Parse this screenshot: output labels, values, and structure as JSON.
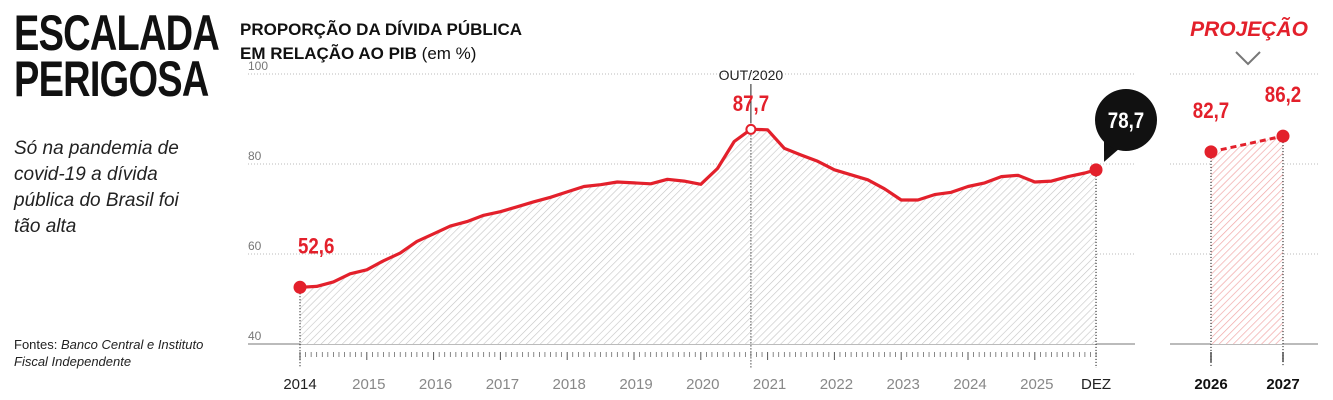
{
  "headline": {
    "line1": "ESCALADA",
    "line2": "PERIGOSA"
  },
  "deck": "Só na pandemia de covid-19 a dívida pública do Brasil foi tão alta",
  "sources": {
    "lead": "Fontes:",
    "body": "Banco Central e Instituto Fiscal Independente"
  },
  "chart_title": {
    "line1": "PROPORÇÃO DA DÍVIDA PÚBLICA",
    "line2_bold": "EM RELAÇÃO AO PIB",
    "line2_unit": "(em %)"
  },
  "colors": {
    "accent": "#e3202b",
    "text": "#111111",
    "grid": "#bbbbbb",
    "callout_bg": "#111111"
  },
  "chart_data": [
    {
      "type": "area",
      "title": "PROPORÇÃO DA DÍVIDA PÚBLICA EM RELAÇÃO AO PIB (em %)",
      "ylim": [
        40,
        100
      ],
      "yticks": [
        "40",
        "60",
        "80",
        "100"
      ],
      "x_tick_labels": [
        "2014",
        "2015",
        "2016",
        "2017",
        "2018",
        "2019",
        "2020",
        "2021",
        "2022",
        "2023",
        "2024",
        "2025",
        "DEZ"
      ],
      "grid": true,
      "series": [
        {
          "values": [
            [
              "2014-01",
              52.6
            ],
            [
              "2014-04",
              52.8
            ],
            [
              "2014-07",
              53.8
            ],
            [
              "2014-10",
              55.6
            ],
            [
              "2015-01",
              56.5
            ],
            [
              "2015-04",
              58.5
            ],
            [
              "2015-07",
              60.2
            ],
            [
              "2015-10",
              62.8
            ],
            [
              "2016-01",
              64.5
            ],
            [
              "2016-04",
              66.2
            ],
            [
              "2016-07",
              67.2
            ],
            [
              "2016-10",
              68.6
            ],
            [
              "2017-01",
              69.4
            ],
            [
              "2017-04",
              70.5
            ],
            [
              "2017-07",
              71.6
            ],
            [
              "2017-10",
              72.6
            ],
            [
              "2018-01",
              73.8
            ],
            [
              "2018-04",
              75.0
            ],
            [
              "2018-07",
              75.4
            ],
            [
              "2018-10",
              76.0
            ],
            [
              "2019-01",
              75.8
            ],
            [
              "2019-04",
              75.6
            ],
            [
              "2019-07",
              76.6
            ],
            [
              "2019-10",
              76.2
            ],
            [
              "2020-01",
              75.5
            ],
            [
              "2020-04",
              79.0
            ],
            [
              "2020-07",
              85.0
            ],
            [
              "2020-10",
              87.7
            ],
            [
              "2021-01",
              87.6
            ],
            [
              "2021-04",
              83.5
            ],
            [
              "2021-07",
              82.0
            ],
            [
              "2021-10",
              80.6
            ],
            [
              "2022-01",
              78.7
            ],
            [
              "2022-04",
              77.6
            ],
            [
              "2022-07",
              76.5
            ],
            [
              "2022-10",
              74.5
            ],
            [
              "2023-01",
              72.0
            ],
            [
              "2023-04",
              72.0
            ],
            [
              "2023-07",
              73.2
            ],
            [
              "2023-10",
              73.7
            ],
            [
              "2024-01",
              75.0
            ],
            [
              "2024-04",
              75.8
            ],
            [
              "2024-07",
              77.2
            ],
            [
              "2024-10",
              77.5
            ],
            [
              "2025-01",
              76.0
            ],
            [
              "2025-04",
              76.2
            ],
            [
              "2025-07",
              77.2
            ],
            [
              "2025-10",
              78.0
            ],
            [
              "2025-12",
              78.7
            ]
          ]
        }
      ],
      "annotations": [
        {
          "label": "52,6",
          "x": "2014-01",
          "y": 52.6
        },
        {
          "label": "87,7",
          "sublabel": "OUT/2020",
          "x": "2020-10",
          "y": 87.7
        },
        {
          "label": "78,7",
          "x": "2025-12",
          "y": 78.7
        }
      ]
    },
    {
      "type": "line",
      "title": "PROJEÇÃO",
      "ylim": [
        40,
        100
      ],
      "categories": [
        "2026",
        "2027"
      ],
      "values": [
        82.7,
        86.2
      ],
      "value_labels": [
        "82,7",
        "86,2"
      ],
      "line_style": "dashed"
    }
  ]
}
